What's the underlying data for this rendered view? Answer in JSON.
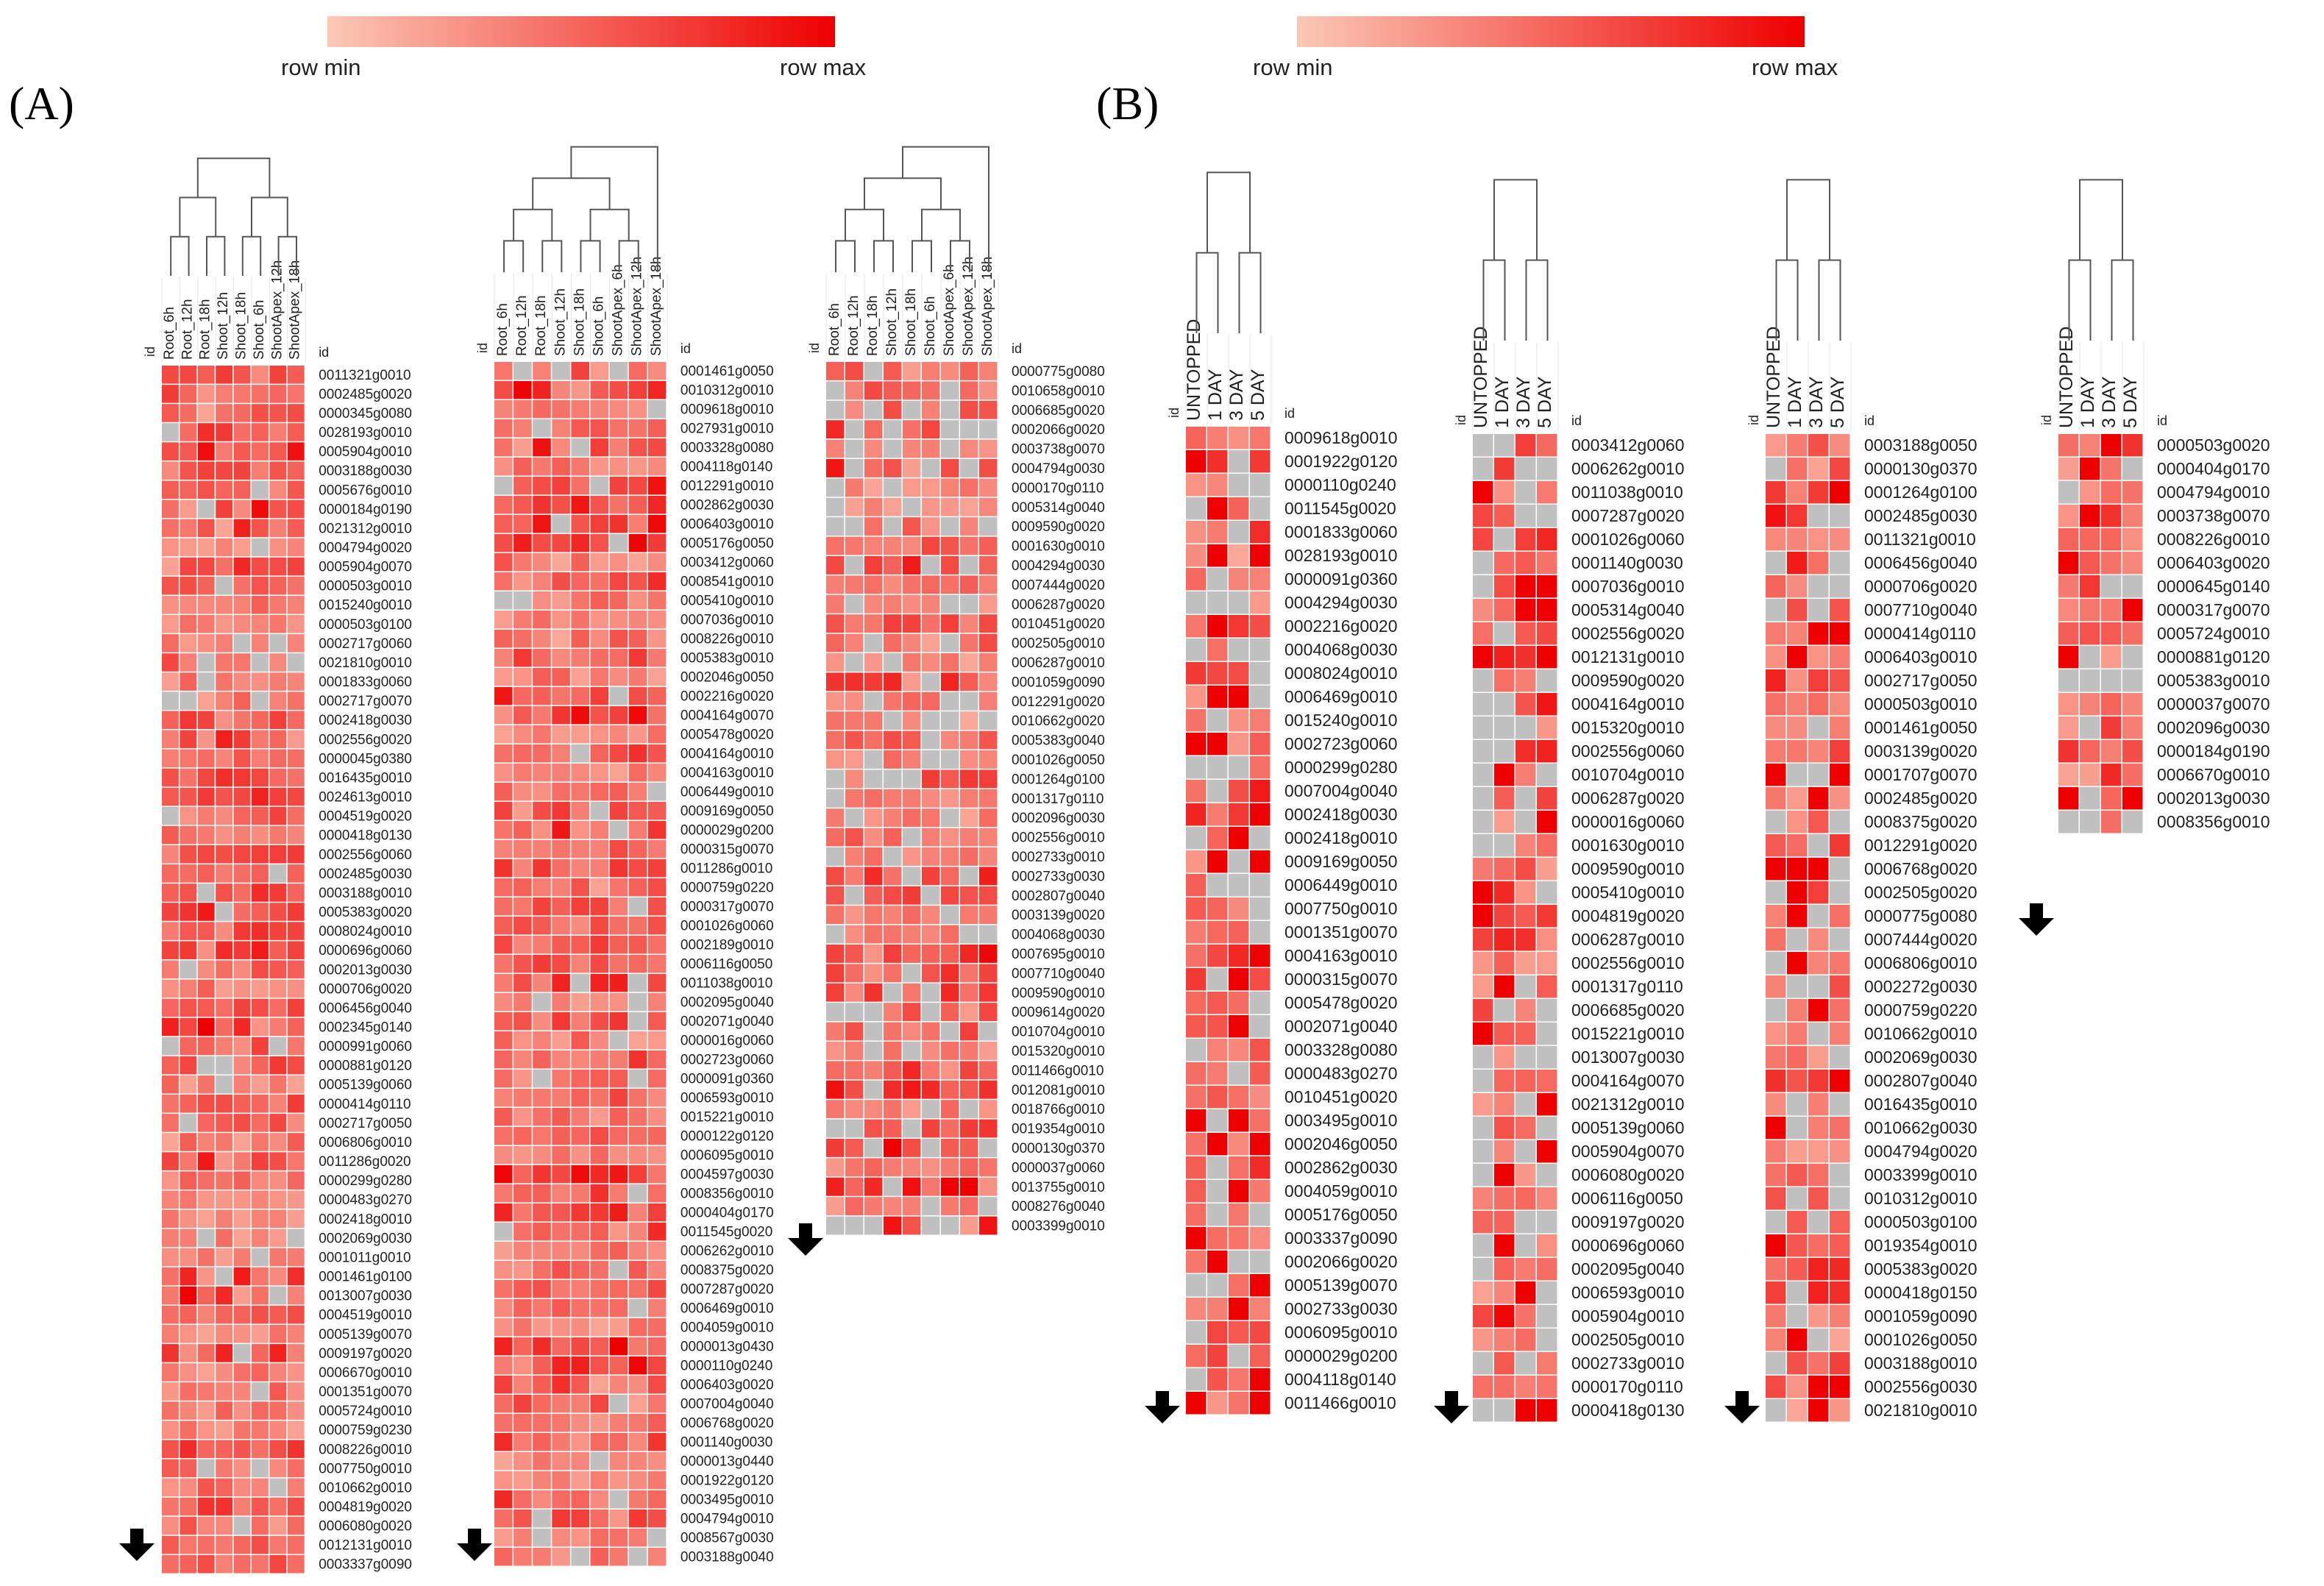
{
  "figure": {
    "legend_min": "row min",
    "legend_max": "row max",
    "color_low": "#fbc8b6",
    "color_high": "#ee0000",
    "color_missing": "#c0c0c0",
    "panel_a_label": "(A)",
    "panel_b_label": "(B)"
  },
  "chart_data": [
    {
      "type": "heatmap",
      "panel": "A",
      "id_label": "id",
      "columns": [
        "Root_6h",
        "Root_12h",
        "Root_18h",
        "Shoot_12h",
        "Shoot_18h",
        "Shoot_6h",
        "ShootApex_12h",
        "ShootApex_18h"
      ],
      "rows": [
        "0011321g0010",
        "0002485g0020",
        "0000345g0080",
        "0028193g0010",
        "0005904g0010",
        "0003188g0030",
        "0005676g0010",
        "0000184g0190",
        "0021312g0010",
        "0004794g0020",
        "0005904g0070",
        "0000503g0010",
        "0015240g0010",
        "0000503g0100",
        "0002717g0060",
        "0021810g0010",
        "0001833g0060",
        "0002717g0070",
        "0002418g0030",
        "0002556g0020",
        "0000045g0380",
        "0016435g0010",
        "0024613g0010",
        "0004519g0020",
        "0000418g0130",
        "0002556g0060",
        "0002485g0030",
        "0003188g0010",
        "0005383g0020",
        "0008024g0010",
        "0000696g0060",
        "0002013g0030",
        "0000706g0020",
        "0006456g0040",
        "0002345g0140",
        "0000991g0060",
        "0000881g0120",
        "0005139g0060",
        "0000414g0110",
        "0002717g0050",
        "0006806g0010",
        "0011286g0020",
        "0000299g0280",
        "0000483g0270",
        "0002418g0010",
        "0002069g0030",
        "0001011g0010",
        "0001461g0100",
        "0013007g0030",
        "0004519g0010",
        "0005139g0070",
        "0009197g0020",
        "0006670g0010",
        "0001351g0070",
        "0005724g0010",
        "0000759g0230",
        "0008226g0010",
        "0007750g0010",
        "0010662g0010",
        "0004819g0020",
        "0006080g0020",
        "0012131g0010",
        "0003337g0090"
      ]
    },
    {
      "type": "heatmap",
      "panel": "A",
      "id_label": "id",
      "columns": [
        "Root_6h",
        "Root_12h",
        "Root_18h",
        "Shoot_12h",
        "Shoot_18h",
        "Shoot_6h",
        "ShootApex_6h",
        "ShootApex_12h",
        "ShootApex_18h"
      ],
      "rows": [
        "0001461g0050",
        "0010312g0010",
        "0009618g0010",
        "0027931g0010",
        "0003328g0080",
        "0004118g0140",
        "0012291g0010",
        "0002862g0030",
        "0006403g0010",
        "0005176g0050",
        "0003412g0060",
        "0008541g0010",
        "0005410g0010",
        "0007036g0010",
        "0008226g0010",
        "0005383g0010",
        "0002046g0050",
        "0002216g0020",
        "0004164g0070",
        "0005478g0020",
        "0004164g0010",
        "0004163g0010",
        "0006449g0010",
        "0009169g0050",
        "0000029g0200",
        "0000315g0070",
        "0011286g0010",
        "0000759g0220",
        "0000317g0070",
        "0001026g0060",
        "0002189g0010",
        "0006116g0050",
        "0011038g0010",
        "0002095g0040",
        "0002071g0040",
        "0000016g0060",
        "0002723g0060",
        "0000091g0360",
        "0006593g0010",
        "0015221g0010",
        "0000122g0120",
        "0006095g0010",
        "0004597g0030",
        "0008356g0010",
        "0000404g0170",
        "0011545g0020",
        "0006262g0010",
        "0008375g0020",
        "0007287g0020",
        "0006469g0010",
        "0004059g0010",
        "0000013g0430",
        "0000110g0240",
        "0006403g0020",
        "0007004g0040",
        "0006768g0020",
        "0001140g0030",
        "0000013g0440",
        "0001922g0120",
        "0003495g0010",
        "0004794g0010",
        "0008567g0030",
        "0003188g0040"
      ]
    },
    {
      "type": "heatmap",
      "panel": "A",
      "id_label": "id",
      "columns": [
        "Root_6h",
        "Root_12h",
        "Root_18h",
        "Shoot_12h",
        "Shoot_18h",
        "Shoot_6h",
        "ShootApex_6h",
        "ShootApex_12h",
        "ShootApex_18h"
      ],
      "rows": [
        "0000775g0080",
        "0010658g0010",
        "0006685g0020",
        "0002066g0020",
        "0003738g0070",
        "0004794g0030",
        "0000170g0110",
        "0005314g0040",
        "0009590g0020",
        "0001630g0010",
        "0004294g0030",
        "0007444g0020",
        "0006287g0020",
        "0010451g0020",
        "0002505g0010",
        "0006287g0010",
        "0001059g0090",
        "0012291g0020",
        "0010662g0020",
        "0005383g0040",
        "0001026g0050",
        "0001264g0100",
        "0001317g0110",
        "0002096g0030",
        "0002556g0010",
        "0002733g0010",
        "0002733g0030",
        "0002807g0040",
        "0003139g0020",
        "0004068g0030",
        "0007695g0010",
        "0007710g0040",
        "0009590g0010",
        "0009614g0020",
        "0010704g0010",
        "0015320g0010",
        "0011466g0010",
        "0012081g0010",
        "0018766g0010",
        "0019354g0010",
        "0000130g0370",
        "0000037g0060",
        "0013755g0010",
        "0008276g0040",
        "0003399g0010"
      ]
    },
    {
      "type": "heatmap",
      "panel": "B",
      "id_label": "id",
      "columns": [
        "UNTOPPED",
        "1 DAY",
        "3 DAY",
        "5 DAY"
      ],
      "rows": [
        "0009618g0010",
        "0001922g0120",
        "0000110g0240",
        "0011545g0020",
        "0001833g0060",
        "0028193g0010",
        "0000091g0360",
        "0004294g0030",
        "0002216g0020",
        "0004068g0030",
        "0008024g0010",
        "0006469g0010",
        "0015240g0010",
        "0002723g0060",
        "0000299g0280",
        "0007004g0040",
        "0002418g0030",
        "0002418g0010",
        "0009169g0050",
        "0006449g0010",
        "0007750g0010",
        "0001351g0070",
        "0004163g0010",
        "0000315g0070",
        "0005478g0020",
        "0002071g0040",
        "0003328g0080",
        "0000483g0270",
        "0010451g0020",
        "0003495g0010",
        "0002046g0050",
        "0002862g0030",
        "0004059g0010",
        "0005176g0050",
        "0003337g0090",
        "0002066g0020",
        "0005139g0070",
        "0002733g0030",
        "0006095g0010",
        "0000029g0200",
        "0004118g0140",
        "0011466g0010"
      ]
    },
    {
      "type": "heatmap",
      "panel": "B",
      "id_label": "id",
      "columns": [
        "UNTOPPED",
        "1 DAY",
        "3 DAY",
        "5 DAY"
      ],
      "rows": [
        "0003412g0060",
        "0006262g0010",
        "0011038g0010",
        "0007287g0020",
        "0001026g0060",
        "0001140g0030",
        "0007036g0010",
        "0005314g0040",
        "0002556g0020",
        "0012131g0010",
        "0009590g0020",
        "0004164g0010",
        "0015320g0010",
        "0002556g0060",
        "0010704g0010",
        "0006287g0020",
        "0000016g0060",
        "0001630g0010",
        "0009590g0010",
        "0005410g0010",
        "0004819g0020",
        "0006287g0010",
        "0002556g0010",
        "0001317g0110",
        "0006685g0020",
        "0015221g0010",
        "0013007g0030",
        "0004164g0070",
        "0021312g0010",
        "0005139g0060",
        "0005904g0070",
        "0006080g0020",
        "0006116g0050",
        "0009197g0020",
        "0000696g0060",
        "0002095g0040",
        "0006593g0010",
        "0005904g0010",
        "0002505g0010",
        "0002733g0010",
        "0000170g0110",
        "0000418g0130"
      ]
    },
    {
      "type": "heatmap",
      "panel": "B",
      "id_label": "id",
      "columns": [
        "UNTOPPED",
        "1 DAY",
        "3 DAY",
        "5 DAY"
      ],
      "rows": [
        "0003188g0050",
        "0000130g0370",
        "0001264g0100",
        "0002485g0030",
        "0011321g0010",
        "0006456g0040",
        "0000706g0020",
        "0007710g0040",
        "0000414g0110",
        "0006403g0010",
        "0002717g0050",
        "0000503g0010",
        "0001461g0050",
        "0003139g0020",
        "0001707g0070",
        "0002485g0020",
        "0008375g0020",
        "0012291g0020",
        "0006768g0020",
        "0002505g0020",
        "0000775g0080",
        "0007444g0020",
        "0006806g0010",
        "0002272g0030",
        "0000759g0220",
        "0010662g0010",
        "0002069g0030",
        "0002807g0040",
        "0016435g0010",
        "0010662g0030",
        "0004794g0020",
        "0003399g0010",
        "0010312g0010",
        "0000503g0100",
        "0019354g0010",
        "0005383g0020",
        "0000418g0150",
        "0001059g0090",
        "0001026g0050",
        "0003188g0010",
        "0002556g0030",
        "0021810g0010"
      ]
    },
    {
      "type": "heatmap",
      "panel": "B",
      "id_label": "id",
      "columns": [
        "UNTOPPED",
        "1 DAY",
        "3 DAY",
        "5 DAY"
      ],
      "rows": [
        "0000503g0020",
        "0000404g0170",
        "0004794g0010",
        "0003738g0070",
        "0008226g0010",
        "0006403g0020",
        "0000645g0140",
        "0000317g0070",
        "0005724g0010",
        "0000881g0120",
        "0005383g0010",
        "0000037g0070",
        "0002096g0030",
        "0000184g0190",
        "0006670g0010",
        "0002013g0030",
        "0008356g0010"
      ]
    }
  ]
}
